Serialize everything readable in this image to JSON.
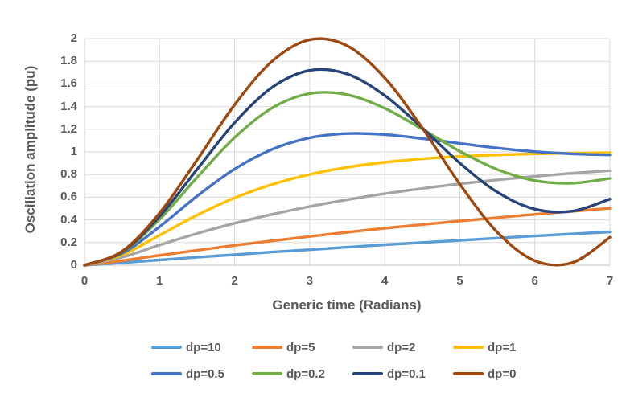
{
  "chart_data": {
    "type": "line",
    "title": "",
    "xlabel": "Generic time (Radians)",
    "ylabel": "Oscillation amplitude (pu)",
    "xlim": [
      0,
      7
    ],
    "ylim": [
      0,
      2
    ],
    "x_ticks": [
      0,
      1,
      2,
      3,
      4,
      5,
      6,
      7
    ],
    "y_ticks": [
      "0",
      "0.2",
      "0.4",
      "0.6",
      "0.8",
      "1",
      "1.2",
      "1.4",
      "1.6",
      "1.8",
      "2"
    ],
    "grid": true,
    "legend_position": "bottom",
    "x": [
      0,
      0.5,
      1,
      1.5,
      2,
      2.5,
      3,
      3.5,
      4,
      4.5,
      5,
      5.5,
      6,
      6.5,
      7
    ],
    "series": [
      {
        "name": "dp=10",
        "color": "#5B9BD5",
        "values": [
          0,
          0.022,
          0.046,
          0.07,
          0.093,
          0.116,
          0.137,
          0.159,
          0.18,
          0.2,
          0.22,
          0.239,
          0.258,
          0.276,
          0.294
        ]
      },
      {
        "name": "dp=5",
        "color": "#ED7D31",
        "values": [
          0,
          0.04,
          0.087,
          0.132,
          0.175,
          0.215,
          0.254,
          0.291,
          0.326,
          0.359,
          0.39,
          0.42,
          0.449,
          0.476,
          0.502
        ]
      },
      {
        "name": "dp=2",
        "color": "#A5A5A5",
        "values": [
          0,
          0.07,
          0.178,
          0.28,
          0.37,
          0.449,
          0.518,
          0.578,
          0.631,
          0.677,
          0.718,
          0.753,
          0.784,
          0.811,
          0.835
        ]
      },
      {
        "name": "dp=1",
        "color": "#FFC000",
        "values": [
          0,
          0.09,
          0.264,
          0.442,
          0.594,
          0.713,
          0.801,
          0.864,
          0.908,
          0.939,
          0.96,
          0.973,
          0.983,
          0.989,
          0.993
        ]
      },
      {
        "name": "dp=0.5",
        "color": "#4472C4",
        "values": [
          0,
          0.104,
          0.34,
          0.61,
          0.849,
          1.023,
          1.124,
          1.162,
          1.153,
          1.118,
          1.075,
          1.034,
          1.002,
          0.983,
          0.974
        ]
      },
      {
        "name": "dp=0.2",
        "color": "#70AD47",
        "values": [
          0,
          0.115,
          0.405,
          0.775,
          1.127,
          1.388,
          1.515,
          1.505,
          1.385,
          1.201,
          1.006,
          0.845,
          0.747,
          0.724,
          0.766
        ]
      },
      {
        "name": "dp=0.1",
        "color": "#264478",
        "values": [
          0,
          0.118,
          0.431,
          0.846,
          1.258,
          1.57,
          1.72,
          1.688,
          1.498,
          1.211,
          0.902,
          0.645,
          0.495,
          0.477,
          0.583
        ]
      },
      {
        "name": "dp=0",
        "color": "#9E480E",
        "values": [
          0,
          0.122,
          0.46,
          0.929,
          1.416,
          1.801,
          1.99,
          1.936,
          1.654,
          1.211,
          0.716,
          0.291,
          0.04,
          0.023,
          0.246
        ]
      }
    ]
  },
  "colors": {
    "gridline": "#D9D9D9",
    "axis_line": "#BFBFBF",
    "text": "#595959",
    "background": "#FFFFFF"
  }
}
